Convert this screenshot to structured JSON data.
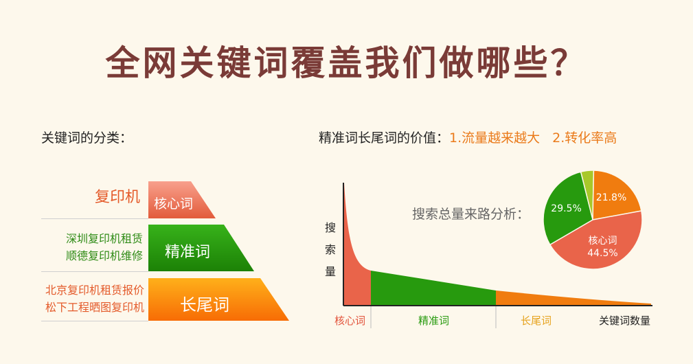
{
  "title": "全网关键词覆盖我们做哪些？",
  "left": {
    "heading": "关键词的分类：",
    "tiers": [
      {
        "tag": "核心词",
        "examples": [
          "复印机"
        ]
      },
      {
        "tag": "精准词",
        "examples": [
          "深圳复印机租赁",
          "顺德复印机维修"
        ]
      },
      {
        "tag": "长尾词",
        "examples": [
          "北京复印机租赁报价",
          "松下工程晒图复印机"
        ]
      }
    ]
  },
  "right": {
    "heading_prefix": "精准词长尾词的价值：",
    "heading_point1": "1.流量越来越大",
    "heading_point2": "2.转化率高",
    "pie_label": "搜索总量来路分析：",
    "y_axis": "搜索量",
    "x_axis": "关键词数量",
    "segments": [
      "核心词",
      "精准词",
      "长尾词"
    ],
    "colors": {
      "core": "#e9644a",
      "precise": "#279a0e",
      "longtail": "#f07c0f",
      "other": "#a8c82a"
    }
  },
  "chart_data": {
    "type": "pie",
    "slices": [
      {
        "label": "核心词",
        "value": 44.5
      },
      {
        "label": "",
        "value": 29.5
      },
      {
        "label": "",
        "value": 21.8
      },
      {
        "label": "",
        "value": 4.2
      }
    ],
    "value_labels": [
      "44.5%",
      "29.5%",
      "21.8%"
    ]
  }
}
